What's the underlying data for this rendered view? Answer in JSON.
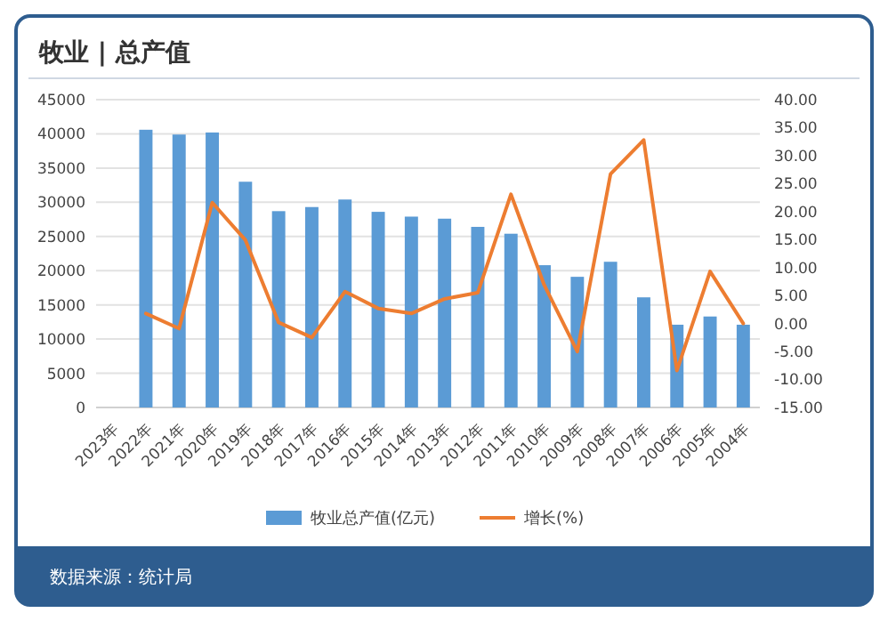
{
  "chart_data": {
    "type": "bar",
    "title": "牧业 | 总产值",
    "categories": [
      "2023年",
      "2022年",
      "2021年",
      "2020年",
      "2019年",
      "2018年",
      "2017年",
      "2016年",
      "2015年",
      "2014年",
      "2013年",
      "2012年",
      "2011年",
      "2010年",
      "2009年",
      "2008年",
      "2007年",
      "2006年",
      "2005年",
      "2004年"
    ],
    "series": [
      {
        "name": "牧业总产值(亿元)",
        "color": "#5b9bd5",
        "values": [
          null,
          40600,
          39900,
          40200,
          33000,
          28700,
          29300,
          30400,
          28600,
          27900,
          27600,
          26400,
          25400,
          20800,
          19100,
          21300,
          16100,
          12100,
          13300,
          12100
        ]
      },
      {
        "name": "增长(%)",
        "type": "line",
        "axis": "y2",
        "color": "#ed7d31",
        "values": [
          null,
          1.8,
          -0.9,
          21.6,
          14.9,
          0.2,
          -2.5,
          5.7,
          2.7,
          1.8,
          4.4,
          5.5,
          23.1,
          6.9,
          -5,
          26.7,
          32.8,
          -8.4,
          9.3,
          0
        ]
      }
    ],
    "ylim": [
      0,
      45000
    ],
    "yticks": [
      0,
      5000,
      10000,
      15000,
      20000,
      25000,
      30000,
      35000,
      40000,
      45000
    ],
    "y2lim": [
      -15,
      40
    ],
    "y2ticks": [
      {
        "value": -15,
        "label": "-15.00"
      },
      {
        "value": -10,
        "label": "-10.00"
      },
      {
        "value": -5,
        "label": "-5.00"
      },
      {
        "value": 0,
        "label": "0.00"
      },
      {
        "value": 5,
        "label": "5.00"
      },
      {
        "value": 10,
        "label": "10.00"
      },
      {
        "value": 15,
        "label": "15.00"
      },
      {
        "value": 20,
        "label": "20.00"
      },
      {
        "value": 25,
        "label": "25.00"
      },
      {
        "value": 30,
        "label": "30.00"
      },
      {
        "value": 35,
        "label": "35.00"
      },
      {
        "value": 40,
        "label": "40.00"
      }
    ],
    "grid": "y",
    "legend": "bottom",
    "annotations": [
      "数据来源：统计局"
    ]
  }
}
